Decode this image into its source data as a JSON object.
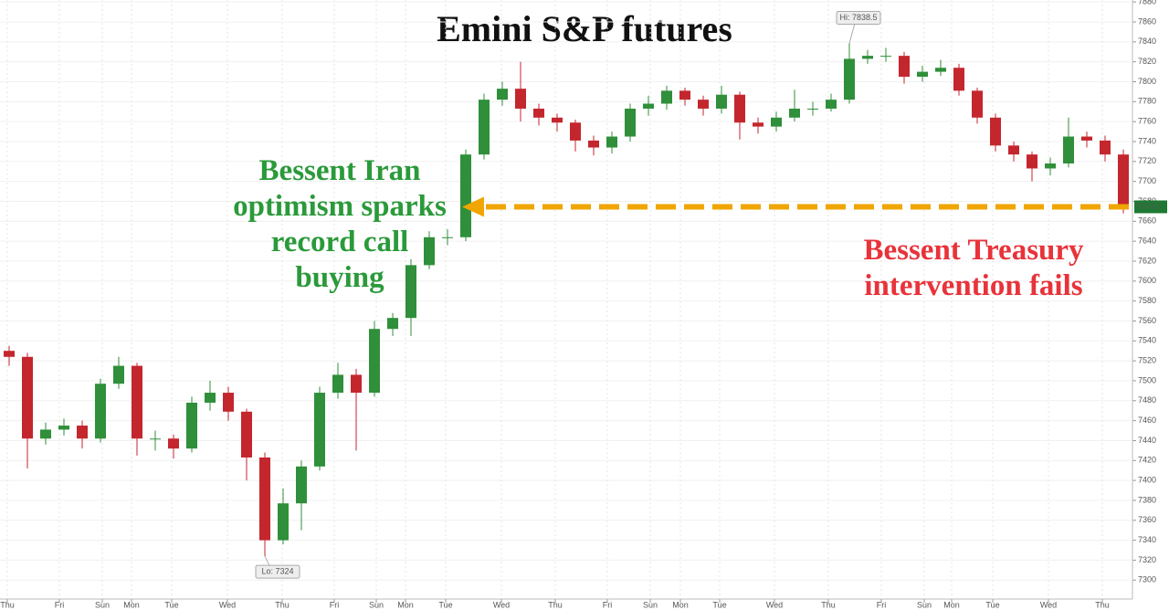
{
  "chart_data": {
    "type": "candlestick",
    "title": "Emini S&P futures",
    "annotations": {
      "green": [
        "Bessent Iran",
        "optimism sparks",
        "record call",
        "buying"
      ],
      "red": [
        "Bessent Treasury",
        "intervention fails"
      ],
      "high_label": "Hi: 7838.5",
      "low_label": "Lo: 7324",
      "last_label": "7674.5"
    },
    "up_color": "#2f8f3a",
    "down_color": "#c4262e",
    "grid": true,
    "open": [
      7530,
      7524,
      7442,
      7451,
      7455,
      7442,
      7497,
      7515,
      7442,
      7442,
      7432,
      7478,
      7488,
      7469,
      7423,
      7340,
      7377,
      7414,
      7488,
      7506,
      7488,
      7552,
      7563,
      7616,
      7644,
      7644,
      7727,
      7782,
      7793,
      7773,
      7764,
      7759,
      7741,
      7734,
      7745,
      7773,
      7778,
      7791,
      7782,
      7773,
      7787,
      7759,
      7755,
      7764,
      7773,
      7773,
      7782,
      7823,
      7826,
      7826,
      7805,
      7810,
      7814,
      7791,
      7764,
      7736,
      7727,
      7713,
      7718,
      7745,
      7741,
      7727
    ],
    "high": [
      7535,
      7528,
      7458,
      7462,
      7460,
      7502,
      7524,
      7518,
      7450,
      7446,
      7484,
      7500,
      7494,
      7472,
      7428,
      7392,
      7420,
      7494,
      7518,
      7512,
      7560,
      7568,
      7622,
      7650,
      7652,
      7732,
      7788,
      7800,
      7820,
      7778,
      7768,
      7762,
      7746,
      7750,
      7778,
      7786,
      7796,
      7794,
      7786,
      7796,
      7790,
      7764,
      7770,
      7792,
      7780,
      7788,
      7838.5,
      7832,
      7834,
      7830,
      7816,
      7822,
      7818,
      7794,
      7768,
      7740,
      7730,
      7724,
      7764,
      7750,
      7746,
      7732
    ],
    "low": [
      7515,
      7412,
      7436,
      7445,
      7432,
      7438,
      7492,
      7425,
      7430,
      7422,
      7428,
      7470,
      7460,
      7400,
      7324,
      7336,
      7350,
      7410,
      7482,
      7430,
      7484,
      7545,
      7545,
      7612,
      7636,
      7640,
      7722,
      7776,
      7760,
      7756,
      7750,
      7730,
      7726,
      7728,
      7740,
      7766,
      7772,
      7776,
      7766,
      7768,
      7742,
      7748,
      7750,
      7760,
      7766,
      7770,
      7778,
      7818,
      7820,
      7798,
      7800,
      7806,
      7786,
      7758,
      7730,
      7720,
      7700,
      7706,
      7714,
      7734,
      7720,
      7668
    ],
    "close": [
      7524,
      7442,
      7451,
      7455,
      7442,
      7497,
      7515,
      7442,
      7442,
      7432,
      7478,
      7488,
      7469,
      7423,
      7340,
      7377,
      7414,
      7488,
      7506,
      7488,
      7552,
      7563,
      7616,
      7644,
      7644,
      7727,
      7782,
      7793,
      7773,
      7764,
      7759,
      7741,
      7734,
      7745,
      7773,
      7778,
      7791,
      7782,
      7773,
      7787,
      7759,
      7755,
      7764,
      7773,
      7773,
      7782,
      7823,
      7826,
      7826,
      7805,
      7810,
      7814,
      7791,
      7764,
      7736,
      7727,
      7713,
      7718,
      7745,
      7741,
      7727,
      7674.5
    ],
    "xlim": [
      -0.5,
      61.5
    ],
    "xticks": [
      {
        "value": -0.1,
        "label": "Thu"
      },
      {
        "value": 2.75,
        "label": "Fri"
      },
      {
        "value": 5.1,
        "label": "Sun"
      },
      {
        "value": 6.7,
        "label": "Mon"
      },
      {
        "value": 8.9,
        "label": "Tue"
      },
      {
        "value": 11.95,
        "label": "Wed"
      },
      {
        "value": 14.95,
        "label": "Thu"
      },
      {
        "value": 17.8,
        "label": "Fri"
      },
      {
        "value": 20.1,
        "label": "Sun"
      },
      {
        "value": 21.7,
        "label": "Mon"
      },
      {
        "value": 23.9,
        "label": "Tue"
      },
      {
        "value": 26.95,
        "label": "Wed"
      },
      {
        "value": 29.9,
        "label": "Thu"
      },
      {
        "value": 32.75,
        "label": "Fri"
      },
      {
        "value": 35.1,
        "label": "Sun"
      },
      {
        "value": 36.75,
        "label": "Mon"
      },
      {
        "value": 38.9,
        "label": "Tue"
      },
      {
        "value": 41.9,
        "label": "Wed"
      },
      {
        "value": 44.85,
        "label": "Thu"
      },
      {
        "value": 47.75,
        "label": "Fri"
      },
      {
        "value": 50.1,
        "label": "Sun"
      },
      {
        "value": 51.6,
        "label": "Mon"
      },
      {
        "value": 53.85,
        "label": "Tue"
      },
      {
        "value": 56.9,
        "label": "Wed"
      },
      {
        "value": 59.85,
        "label": "Thu"
      }
    ],
    "ylim": [
      7281,
      7882
    ],
    "yticks": [
      7300,
      7320,
      7340,
      7360,
      7380,
      7400,
      7420,
      7440,
      7460,
      7480,
      7500,
      7520,
      7540,
      7560,
      7580,
      7600,
      7620,
      7640,
      7660,
      7680,
      7700,
      7720,
      7740,
      7760,
      7780,
      7800,
      7820,
      7840,
      7860,
      7880
    ]
  }
}
